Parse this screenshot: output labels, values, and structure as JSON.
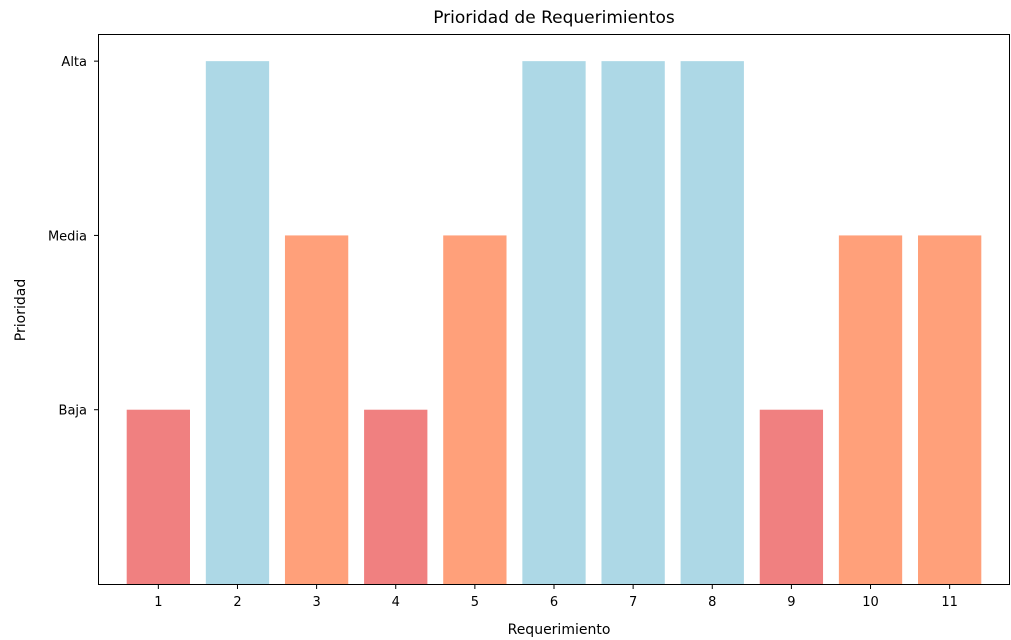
{
  "chart_data": {
    "type": "bar",
    "title": "Prioridad de Requerimientos",
    "xlabel": "Requerimiento",
    "ylabel": "Prioridad",
    "categories": [
      "1",
      "2",
      "3",
      "4",
      "5",
      "6",
      "7",
      "8",
      "9",
      "10",
      "11"
    ],
    "values": [
      1,
      3,
      2,
      1,
      2,
      3,
      3,
      3,
      1,
      2,
      2
    ],
    "value_labels": [
      "Baja",
      "Alta",
      "Media",
      "Baja",
      "Media",
      "Alta",
      "Alta",
      "Alta",
      "Baja",
      "Media",
      "Media"
    ],
    "y_ticks": [
      {
        "value": 1,
        "label": "Baja"
      },
      {
        "value": 2,
        "label": "Media"
      },
      {
        "value": 3,
        "label": "Alta"
      }
    ],
    "ylim": [
      0,
      3.15
    ],
    "grid": false,
    "colors": {
      "Baja": "#f08080",
      "Media": "#ffa07a",
      "Alta": "#add8e6"
    }
  }
}
